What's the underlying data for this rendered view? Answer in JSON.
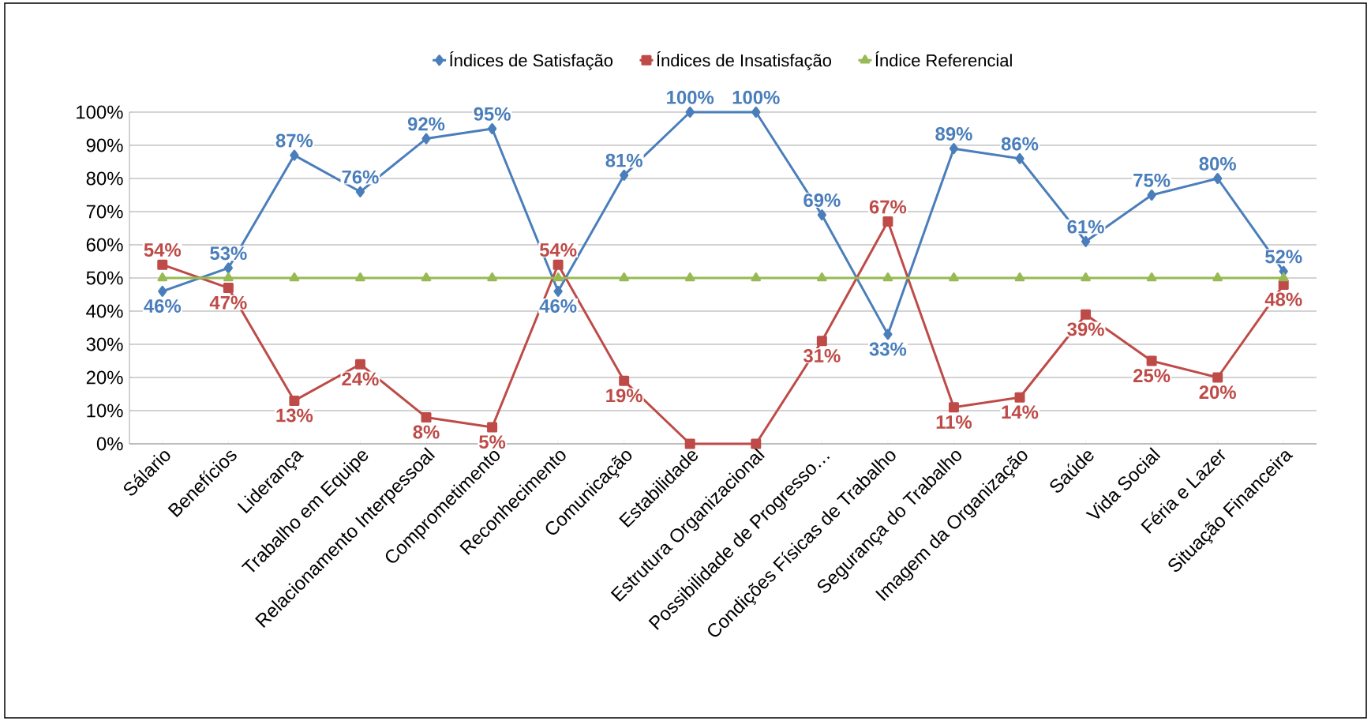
{
  "chart_data": {
    "type": "line",
    "categories": [
      "Sálario",
      "Benefícios",
      "Liderança",
      "Trabalho em Equipe",
      "Relacionamento Interpessoal",
      "Comprometimento",
      "Reconhecimento",
      "Comunicação",
      "Estabilidade",
      "Estrutura Organizacional",
      "Possibilidade de Progresso…",
      "Condições Físicas de Trabalho",
      "Segurança do Trabalho",
      "Imagem da Organização",
      "Saúde",
      "Vida Social",
      "Féria e Lazer",
      "Situação Financeira"
    ],
    "series": [
      {
        "name": "Índices de Satisfação",
        "color": "#4a7ebb",
        "marker": "diamond",
        "values": [
          46,
          53,
          87,
          76,
          92,
          95,
          46,
          81,
          100,
          100,
          69,
          33,
          89,
          86,
          61,
          75,
          80,
          52
        ],
        "value_labels": [
          "46%",
          "53%",
          "87%",
          "76%",
          "92%",
          "95%",
          "46%",
          "81%",
          "100%",
          "100%",
          "69%",
          "33%",
          "89%",
          "86%",
          "61%",
          "75%",
          "80%",
          "52%"
        ]
      },
      {
        "name": "Índices de Insatisfação",
        "color": "#be4b48",
        "marker": "square",
        "values": [
          54,
          47,
          13,
          24,
          8,
          5,
          54,
          19,
          0,
          0,
          31,
          67,
          11,
          14,
          39,
          25,
          20,
          48
        ],
        "value_labels": [
          "54%",
          "47%",
          "13%",
          "24%",
          "8%",
          "5%",
          "54%",
          "19%",
          null,
          null,
          "31%",
          "67%",
          "11%",
          "14%",
          "39%",
          "25%",
          "20%",
          "48%"
        ]
      },
      {
        "name": "Índice Referencial",
        "color": "#98b954",
        "marker": "triangle",
        "values": [
          50,
          50,
          50,
          50,
          50,
          50,
          50,
          50,
          50,
          50,
          50,
          50,
          50,
          50,
          50,
          50,
          50,
          50
        ]
      }
    ],
    "ylim": [
      0,
      100
    ],
    "yticks": [
      {
        "value": 0,
        "label": "0%"
      },
      {
        "value": 10,
        "label": "10%"
      },
      {
        "value": 20,
        "label": "20%"
      },
      {
        "value": 30,
        "label": "30%"
      },
      {
        "value": 40,
        "label": "40%"
      },
      {
        "value": 50,
        "label": "50%"
      },
      {
        "value": 60,
        "label": "60%"
      },
      {
        "value": 70,
        "label": "70%"
      },
      {
        "value": 80,
        "label": "80%"
      },
      {
        "value": 90,
        "label": "90%"
      },
      {
        "value": 100,
        "label": "100%"
      }
    ],
    "grid": "y",
    "legend": "top"
  }
}
